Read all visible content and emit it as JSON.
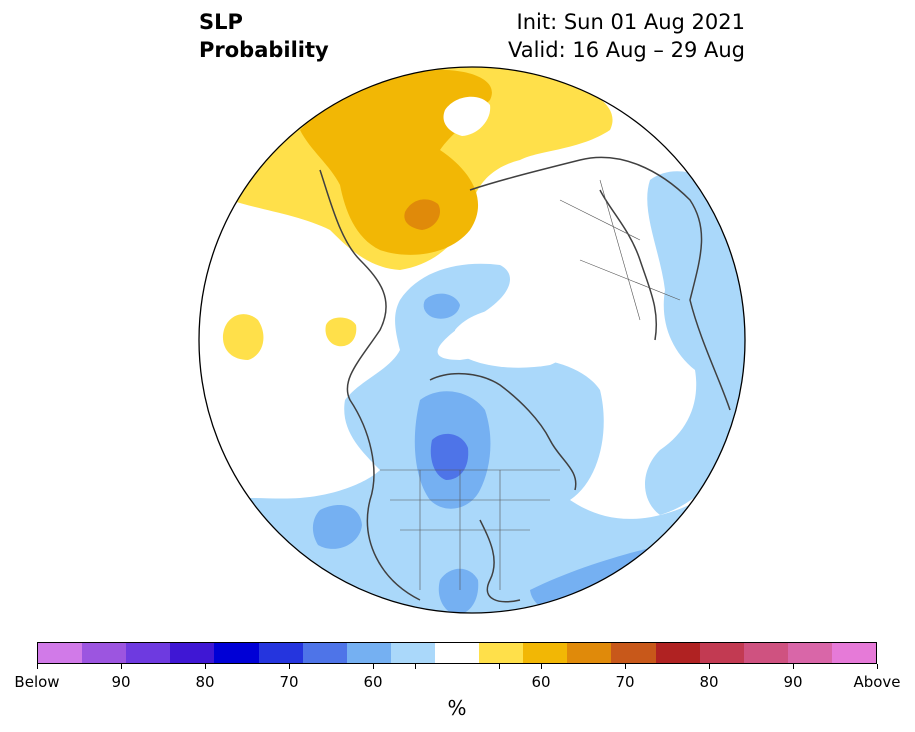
{
  "title": {
    "left_line1": "SLP",
    "left_line2": "Probability",
    "right_line1": "Init: Sun 01 Aug 2021",
    "right_line2": "Valid: 16 Aug – 29 Aug"
  },
  "colorbar": {
    "unit": "%",
    "colors": [
      "#d17ae8",
      "#9c55e0",
      "#6e3ae0",
      "#3f17d4",
      "#0000d6",
      "#2535de",
      "#4e74e8",
      "#75b0f2",
      "#aad8fa",
      "#ffffff",
      "#ffe04a",
      "#f2b705",
      "#e08a0a",
      "#c8581a",
      "#b02222",
      "#c23a52",
      "#cf5280",
      "#d966a8",
      "#e67ad8"
    ],
    "labels": [
      "Below",
      "90",
      "80",
      "70",
      "60",
      "60",
      "70",
      "80",
      "90",
      "Above"
    ]
  },
  "map": {
    "projection": "north-polar-stereographic",
    "categories": {
      "below_60": "#aad8fa",
      "below_70": "#75b0f2",
      "below_80": "#4e74e8",
      "near_normal": "#ffffff",
      "above_60": "#ffe04a",
      "above_70": "#f2b705",
      "above_80": "#e08a0a",
      "above_90": "#c8581a"
    }
  }
}
